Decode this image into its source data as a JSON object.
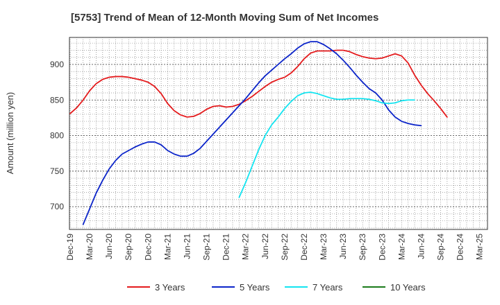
{
  "chart_data": {
    "type": "line",
    "title": "[5753]  Trend of Mean of 12-Month Moving Sum of Net Incomes",
    "xlabel": "",
    "ylabel": "Amount (million yen)",
    "ylim": [
      668,
      938
    ],
    "yticks": [
      700,
      750,
      800,
      850,
      900
    ],
    "x_tick_labels": [
      "Dec-19",
      "Mar-20",
      "Jun-20",
      "Sep-20",
      "Dec-20",
      "Mar-21",
      "Jun-21",
      "Sep-21",
      "Dec-21",
      "Mar-22",
      "Jun-22",
      "Sep-22",
      "Dec-22",
      "Mar-23",
      "Jun-23",
      "Sep-23",
      "Dec-23",
      "Mar-24",
      "Jun-24",
      "Sep-24",
      "Dec-24",
      "Mar-25"
    ],
    "grid": true,
    "legend_position": "bottom",
    "series": [
      {
        "name": "3 Years",
        "color": "#e41a1c",
        "start_index": 0,
        "values": [
          831,
          839,
          850,
          863,
          873,
          879,
          882,
          883,
          883,
          882,
          880,
          878,
          875,
          869,
          859,
          845,
          835,
          829,
          826,
          827,
          831,
          837,
          841,
          842,
          840,
          841,
          844,
          849,
          855,
          862,
          869,
          875,
          879,
          882,
          888,
          897,
          908,
          916,
          919,
          919,
          919,
          920,
          920,
          918,
          914,
          911,
          909,
          908,
          909,
          912,
          915,
          912,
          902,
          885,
          871,
          859,
          849,
          838,
          826
        ]
      },
      {
        "name": "5 Years",
        "color": "#0b24c9",
        "start_index": 2,
        "values": [
          675,
          697,
          719,
          737,
          753,
          765,
          774,
          779,
          784,
          788,
          791,
          791,
          787,
          779,
          774,
          771,
          771,
          775,
          782,
          792,
          802,
          812,
          822,
          832,
          842,
          852,
          863,
          874,
          884,
          892,
          900,
          908,
          915,
          923,
          929,
          932,
          932,
          928,
          922,
          915,
          906,
          896,
          885,
          875,
          866,
          860,
          850,
          836,
          826,
          820,
          817,
          815,
          814
        ]
      },
      {
        "name": "7 Years",
        "color": "#12e4f0",
        "start_index": 26,
        "values": [
          713,
          734,
          757,
          780,
          800,
          815,
          826,
          838,
          848,
          856,
          860,
          861,
          859,
          856,
          853,
          851,
          851,
          852,
          852,
          852,
          851,
          849,
          846,
          845,
          846,
          849,
          850,
          850
        ]
      },
      {
        "name": "10 Years",
        "color": "#1a7a1a",
        "start_index": 0,
        "values": []
      }
    ]
  }
}
